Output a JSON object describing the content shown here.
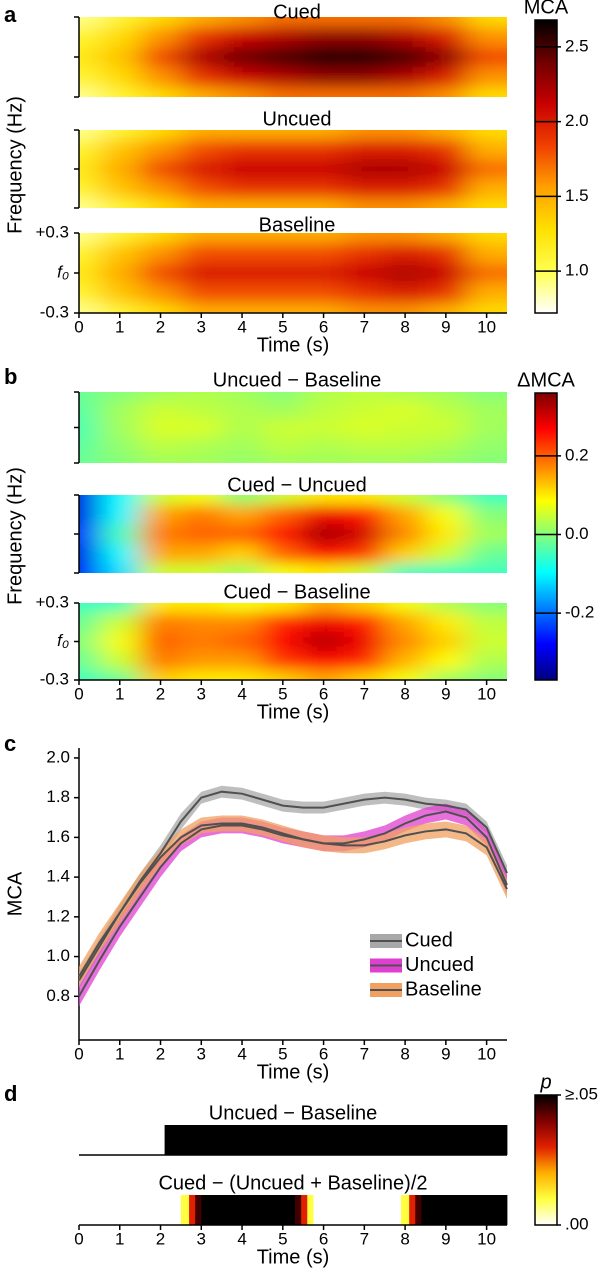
{
  "chart_data": [
    {
      "type": "heatmap",
      "panel_label": "a",
      "panels": [
        {
          "title": "Cued",
          "values": [
            [
              0.9,
              1.1,
              1.3,
              1.5,
              1.6,
              1.7,
              1.7,
              1.7,
              1.7,
              1.6,
              1.3
            ],
            [
              1.1,
              1.3,
              1.6,
              1.9,
              2.1,
              2.2,
              2.3,
              2.3,
              2.2,
              2.0,
              1.6
            ],
            [
              1.2,
              1.4,
              1.8,
              2.2,
              2.4,
              2.5,
              2.6,
              2.6,
              2.5,
              2.3,
              1.8
            ],
            [
              1.1,
              1.3,
              1.6,
              1.9,
              2.1,
              2.2,
              2.3,
              2.3,
              2.2,
              2.0,
              1.6
            ],
            [
              0.9,
              1.1,
              1.3,
              1.5,
              1.6,
              1.7,
              1.7,
              1.7,
              1.7,
              1.6,
              1.3
            ]
          ]
        },
        {
          "title": "Uncued",
          "values": [
            [
              0.9,
              1.1,
              1.3,
              1.5,
              1.5,
              1.5,
              1.5,
              1.6,
              1.6,
              1.5,
              1.3
            ],
            [
              1.1,
              1.4,
              1.6,
              1.8,
              1.9,
              1.9,
              1.9,
              2.0,
              2.0,
              1.9,
              1.5
            ],
            [
              1.2,
              1.5,
              1.8,
              2.0,
              2.1,
              2.1,
              2.1,
              2.2,
              2.2,
              2.1,
              1.7
            ],
            [
              1.1,
              1.4,
              1.6,
              1.8,
              1.9,
              1.9,
              1.9,
              2.0,
              2.0,
              1.9,
              1.5
            ],
            [
              0.9,
              1.1,
              1.3,
              1.5,
              1.5,
              1.5,
              1.5,
              1.6,
              1.6,
              1.5,
              1.3
            ]
          ]
        },
        {
          "title": "Baseline",
          "values": [
            [
              0.9,
              1.1,
              1.3,
              1.5,
              1.5,
              1.5,
              1.5,
              1.6,
              1.6,
              1.5,
              1.3
            ],
            [
              1.1,
              1.4,
              1.6,
              1.8,
              1.8,
              1.8,
              1.8,
              1.9,
              2.0,
              1.9,
              1.5
            ],
            [
              1.2,
              1.5,
              1.8,
              2.0,
              2.0,
              2.0,
              2.0,
              2.1,
              2.2,
              2.1,
              1.7
            ],
            [
              1.1,
              1.4,
              1.6,
              1.8,
              1.8,
              1.8,
              1.8,
              1.9,
              2.0,
              1.9,
              1.5
            ],
            [
              0.9,
              1.1,
              1.3,
              1.5,
              1.5,
              1.5,
              1.5,
              1.6,
              1.6,
              1.5,
              1.3
            ]
          ]
        }
      ],
      "x": [
        0,
        1,
        2,
        3,
        4,
        5,
        6,
        7,
        8,
        9,
        10
      ],
      "y": [
        0.3,
        0.15,
        0,
        -0.15,
        -0.3
      ],
      "xlim": [
        0,
        10.5
      ],
      "ylim": [
        -0.3,
        0.3
      ],
      "xticks": [
        0,
        1,
        2,
        3,
        4,
        5,
        6,
        7,
        8,
        9,
        10
      ],
      "yticks": [
        {
          "value": 0.3,
          "label": "+0.3"
        },
        {
          "value": 0,
          "label": "f₀"
        },
        -0.3
      ],
      "xlabel": "Time (s)",
      "ylabel": "Frequency (Hz)",
      "colorbar": {
        "label": "MCA",
        "lim": [
          0.72,
          2.68
        ],
        "ticks": [
          {
            "value": 1,
            "label": "1.0"
          },
          1.5,
          {
            "value": 2,
            "label": "2.0"
          },
          2.5
        ],
        "colors": [
          "#ffffff",
          "#ffff50",
          "#ffe000",
          "#ffa000",
          "#f04000",
          "#c80000",
          "#700000",
          "#000000"
        ]
      }
    },
    {
      "type": "heatmap",
      "panel_label": "b",
      "panels": [
        {
          "title": "Uncued − Baseline",
          "values": [
            [
              -0.02,
              0,
              0.02,
              0.03,
              0.02,
              0,
              0.03,
              0.04,
              0.03,
              0.02,
              0
            ],
            [
              -0.03,
              0.02,
              0.05,
              0.04,
              0.03,
              0.02,
              0.04,
              0.05,
              0.06,
              0.04,
              0.02
            ],
            [
              -0.04,
              0.02,
              0.06,
              0.06,
              0.03,
              0.05,
              0.05,
              0.06,
              0.05,
              0.05,
              0.02
            ],
            [
              -0.03,
              0.01,
              0.04,
              0.03,
              0.02,
              0.04,
              0.03,
              0.04,
              0.04,
              0.03,
              0.01
            ],
            [
              -0.02,
              0,
              0.02,
              0.02,
              0.01,
              0.02,
              0.02,
              0.02,
              0.02,
              0.01,
              0
            ]
          ]
        },
        {
          "title": "Cued − Uncued",
          "values": [
            [
              -0.3,
              -0.1,
              0.05,
              0.08,
              0,
              0.05,
              0.1,
              0.1,
              0.05,
              0,
              -0.05
            ],
            [
              -0.3,
              -0.1,
              0.15,
              0.18,
              0.15,
              0.2,
              0.28,
              0.25,
              0.15,
              0.08,
              0
            ],
            [
              -0.25,
              -0.05,
              0.18,
              0.2,
              0.2,
              0.26,
              0.33,
              0.3,
              0.17,
              0.1,
              0.02
            ],
            [
              -0.3,
              -0.1,
              0.15,
              0.15,
              0.12,
              0.2,
              0.27,
              0.23,
              0.12,
              0.05,
              -0.02
            ],
            [
              -0.28,
              -0.12,
              0.05,
              0.05,
              0.02,
              0.08,
              0.1,
              0.05,
              -0.05,
              -0.05,
              -0.05
            ]
          ]
        },
        {
          "title": "Cued − Baseline",
          "values": [
            [
              -0.05,
              -0.05,
              0.1,
              0.1,
              0.08,
              0.1,
              0.15,
              0.12,
              0.08,
              0.03,
              0
            ],
            [
              -0.02,
              0.05,
              0.18,
              0.17,
              0.17,
              0.24,
              0.28,
              0.25,
              0.15,
              0.1,
              0.04
            ],
            [
              0,
              0.08,
              0.2,
              0.18,
              0.2,
              0.27,
              0.32,
              0.28,
              0.17,
              0.12,
              0.05
            ],
            [
              -0.02,
              0.05,
              0.18,
              0.16,
              0.16,
              0.23,
              0.27,
              0.24,
              0.14,
              0.09,
              0.03
            ],
            [
              -0.05,
              -0.02,
              0.12,
              0.1,
              0.1,
              0.12,
              0.15,
              0.12,
              0.08,
              0.02,
              0
            ]
          ]
        }
      ],
      "x": [
        0,
        1,
        2,
        3,
        4,
        5,
        6,
        7,
        8,
        9,
        10
      ],
      "y": [
        0.3,
        0.15,
        0,
        -0.15,
        -0.3
      ],
      "xlim": [
        0,
        10.5
      ],
      "ylim": [
        -0.3,
        0.3
      ],
      "xticks": [
        0,
        1,
        2,
        3,
        4,
        5,
        6,
        7,
        8,
        9,
        10
      ],
      "yticks": [
        {
          "value": 0.3,
          "label": "+0.3"
        },
        {
          "value": 0,
          "label": "f₀"
        },
        -0.3
      ],
      "xlabel": "Time (s)",
      "ylabel": "Frequency (Hz)",
      "colorbar": {
        "label": "ΔMCA",
        "lim": [
          -0.37,
          0.36
        ],
        "ticks": [
          -0.2,
          {
            "value": 0,
            "label": "0.0"
          },
          0.2
        ],
        "colors": [
          "#00007f",
          "#0000ff",
          "#007fff",
          "#00ffff",
          "#7fff7f",
          "#ffff00",
          "#ff7f00",
          "#ff0000",
          "#7f0000"
        ]
      }
    },
    {
      "type": "line",
      "panel_label": "c",
      "x": [
        0,
        0.5,
        1,
        1.5,
        2,
        2.5,
        3,
        3.5,
        4,
        4.5,
        5,
        5.5,
        6,
        6.5,
        7,
        7.5,
        8,
        8.5,
        9,
        9.5,
        10,
        10.5
      ],
      "series": [
        {
          "name": "Cued",
          "color": "#a8a8a8",
          "line_color": "#505050",
          "values": [
            0.88,
            1.05,
            1.22,
            1.38,
            1.52,
            1.68,
            1.8,
            1.83,
            1.82,
            1.79,
            1.76,
            1.75,
            1.75,
            1.77,
            1.79,
            1.8,
            1.79,
            1.77,
            1.76,
            1.74,
            1.65,
            1.42
          ],
          "errors": [
            0.04,
            0.04,
            0.04,
            0.04,
            0.04,
            0.04,
            0.03,
            0.03,
            0.03,
            0.03,
            0.03,
            0.03,
            0.03,
            0.03,
            0.03,
            0.03,
            0.03,
            0.03,
            0.03,
            0.03,
            0.03,
            0.04
          ]
        },
        {
          "name": "Uncued",
          "color": "#e040d0",
          "line_color": "#505050",
          "values": [
            0.8,
            0.98,
            1.15,
            1.3,
            1.45,
            1.57,
            1.64,
            1.66,
            1.66,
            1.64,
            1.61,
            1.59,
            1.57,
            1.57,
            1.59,
            1.62,
            1.67,
            1.71,
            1.73,
            1.7,
            1.6,
            1.36
          ],
          "errors": [
            0.05,
            0.05,
            0.05,
            0.05,
            0.05,
            0.04,
            0.04,
            0.04,
            0.04,
            0.04,
            0.04,
            0.04,
            0.04,
            0.04,
            0.04,
            0.04,
            0.04,
            0.04,
            0.04,
            0.04,
            0.04,
            0.05
          ]
        },
        {
          "name": "Baseline",
          "color": "#f0a060",
          "line_color": "#505050",
          "values": [
            0.9,
            1.07,
            1.22,
            1.37,
            1.5,
            1.6,
            1.66,
            1.67,
            1.67,
            1.65,
            1.62,
            1.59,
            1.57,
            1.56,
            1.56,
            1.58,
            1.61,
            1.63,
            1.64,
            1.62,
            1.55,
            1.34
          ],
          "errors": [
            0.05,
            0.05,
            0.05,
            0.05,
            0.04,
            0.04,
            0.04,
            0.04,
            0.04,
            0.04,
            0.04,
            0.04,
            0.04,
            0.04,
            0.04,
            0.04,
            0.04,
            0.04,
            0.04,
            0.04,
            0.04,
            0.05
          ]
        }
      ],
      "xlim": [
        0,
        10.5
      ],
      "ylim": [
        0.58,
        2.05
      ],
      "xticks": [
        0,
        1,
        2,
        3,
        4,
        5,
        6,
        7,
        8,
        9,
        10
      ],
      "yticks": [
        0.8,
        {
          "value": 1,
          "label": "1.0"
        },
        1.2,
        1.4,
        1.6,
        1.8,
        {
          "value": 2,
          "label": "2.0"
        }
      ],
      "xlabel": "Time (s)",
      "ylabel": "MCA",
      "legend": "lower right"
    },
    {
      "type": "strip",
      "panel_label": "d",
      "strips": [
        {
          "title": "Uncued − Baseline",
          "bins": [
            2.1,
            10.5
          ],
          "values": [
            0.05
          ]
        },
        {
          "title": "Cued − (Uncued + Baseline)/2",
          "bins": [
            2.1,
            2.5,
            2.7,
            2.85,
            3.0,
            5.3,
            5.45,
            5.6,
            5.75,
            7.9,
            8.1,
            8.25,
            8.4,
            10.5
          ],
          "values": [
            0,
            0.01,
            0.03,
            0.045,
            0.05,
            0.045,
            0.03,
            0.01,
            0,
            0.01,
            0.03,
            0.045,
            0.05
          ]
        }
      ],
      "xlim": [
        0,
        10.5
      ],
      "xticks": [
        0,
        1,
        2,
        3,
        4,
        5,
        6,
        7,
        8,
        9,
        10
      ],
      "xlabel": "Time (s)",
      "colorbar": {
        "label": "p",
        "lim": [
          0,
          0.05
        ],
        "ticks": [
          {
            "value": 0.05,
            "label": "≥.05"
          },
          {
            "value": 0,
            "label": ".00"
          }
        ],
        "colors": [
          "#ffffff",
          "#ffff40",
          "#ffb000",
          "#e02000",
          "#800000",
          "#000000"
        ]
      }
    }
  ]
}
